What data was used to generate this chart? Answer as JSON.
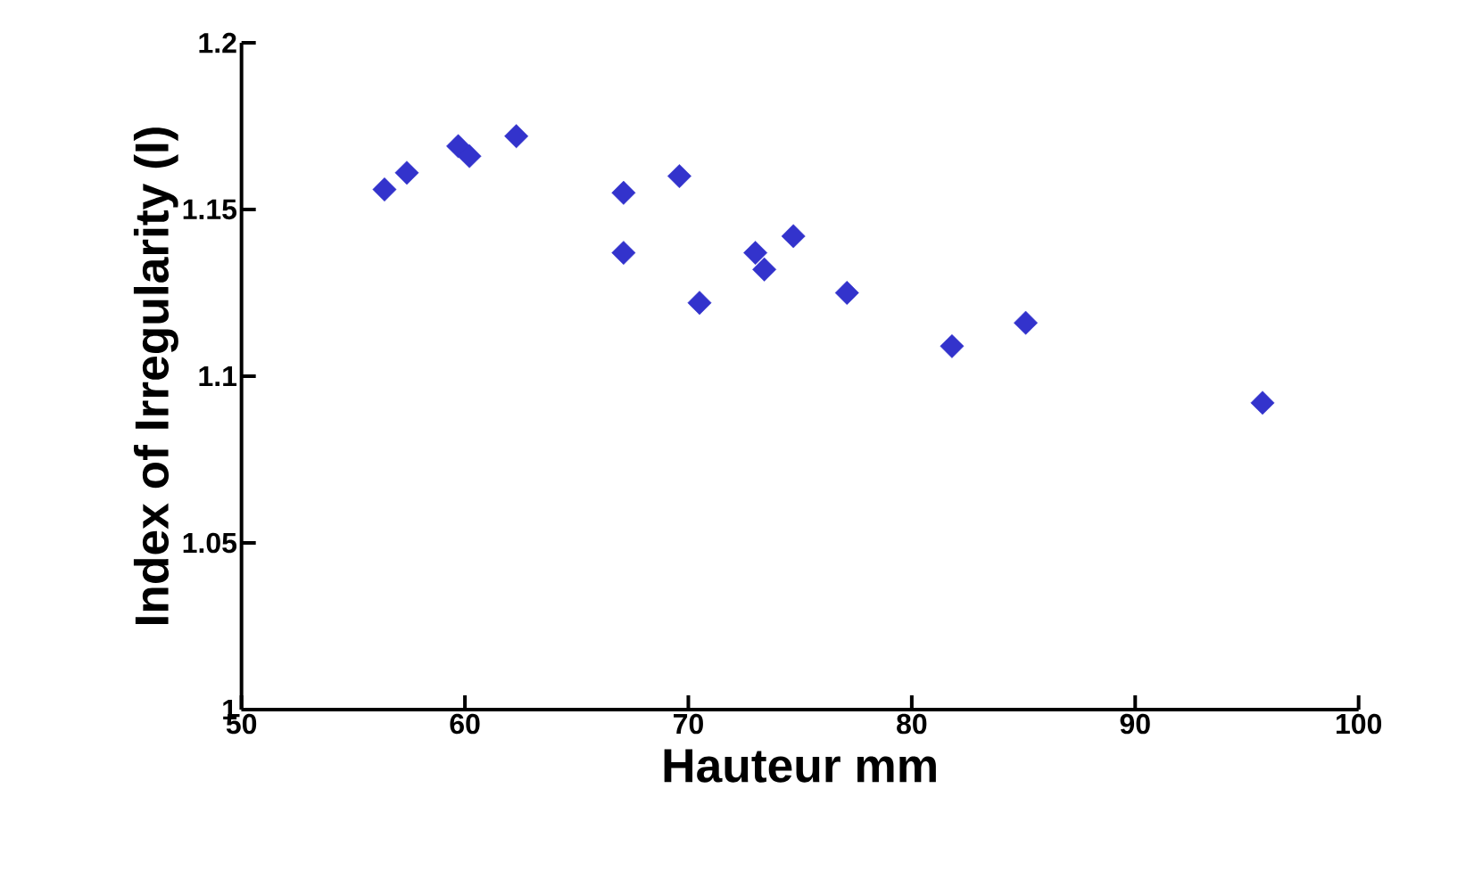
{
  "chart_data": {
    "type": "scatter",
    "xlabel": "Hauteur  mm",
    "ylabel": "Index of Irregularity (I)",
    "x": [
      56.4,
      57.4,
      59.7,
      60.2,
      62.3,
      67.1,
      67.1,
      69.6,
      70.5,
      73.0,
      73.4,
      74.7,
      77.1,
      81.8,
      85.1,
      95.7
    ],
    "values": [
      1.156,
      1.161,
      1.169,
      1.166,
      1.172,
      1.155,
      1.137,
      1.16,
      1.122,
      1.137,
      1.132,
      1.142,
      1.125,
      1.109,
      1.116,
      1.092
    ],
    "color": "#3333cc",
    "marker": "diamond",
    "grid": false,
    "xlim": [
      50,
      100
    ],
    "xticks": [
      50,
      60,
      70,
      80,
      90,
      100
    ],
    "ylim": [
      1,
      1.2
    ],
    "yticks": [
      1,
      1.05,
      1.1,
      1.15,
      1.2
    ]
  }
}
